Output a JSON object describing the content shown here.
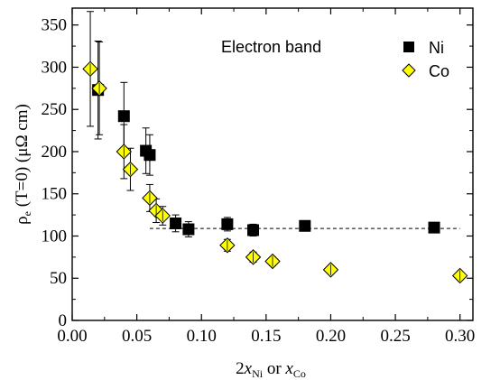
{
  "chart_data": {
    "type": "scatter",
    "annotation": "Electron band",
    "xlabel": {
      "base": "2",
      "var1": "x",
      "sub1": "Ni",
      "mid": " or ",
      "var2": "x",
      "sub2": "Co"
    },
    "ylabel": {
      "rho": "ρ",
      "sub": "e",
      "rest": " (T=0) (μΩ cm)"
    },
    "xlim": [
      0,
      0.31
    ],
    "ylim": [
      0,
      370
    ],
    "xticks": [
      "0.00",
      "0.05",
      "0.10",
      "0.15",
      "0.20",
      "0.25",
      "0.30"
    ],
    "yticks": [
      "0",
      "50",
      "100",
      "150",
      "200",
      "250",
      "300",
      "350"
    ],
    "legend_position": "top-right",
    "series": [
      {
        "name": "Ni",
        "marker": "square",
        "color": "#000000",
        "points": [
          {
            "x": 0.02,
            "y": 273,
            "err": 58
          },
          {
            "x": 0.04,
            "y": 242,
            "err": 40
          },
          {
            "x": 0.057,
            "y": 201,
            "err": 27
          },
          {
            "x": 0.06,
            "y": 196,
            "err": 24
          },
          {
            "x": 0.08,
            "y": 115,
            "err": 10
          },
          {
            "x": 0.09,
            "y": 108,
            "err": 9
          },
          {
            "x": 0.12,
            "y": 114,
            "err": 8
          },
          {
            "x": 0.14,
            "y": 107,
            "err": 7
          },
          {
            "x": 0.18,
            "y": 112,
            "err": 5
          },
          {
            "x": 0.28,
            "y": 110,
            "err": 5
          }
        ]
      },
      {
        "name": "Co",
        "marker": "diamond",
        "color": "#ffff00",
        "points": [
          {
            "x": 0.014,
            "y": 298,
            "err": 68
          },
          {
            "x": 0.021,
            "y": 275,
            "err": 55
          },
          {
            "x": 0.04,
            "y": 200,
            "err": 32
          },
          {
            "x": 0.045,
            "y": 179,
            "err": 25
          },
          {
            "x": 0.06,
            "y": 145,
            "err": 16
          },
          {
            "x": 0.065,
            "y": 130,
            "err": 14
          },
          {
            "x": 0.07,
            "y": 124,
            "err": 11
          },
          {
            "x": 0.12,
            "y": 89,
            "err": 7
          },
          {
            "x": 0.14,
            "y": 75,
            "err": 6
          },
          {
            "x": 0.155,
            "y": 70,
            "err": 5
          },
          {
            "x": 0.2,
            "y": 60,
            "err": 4
          },
          {
            "x": 0.3,
            "y": 53,
            "err": 4
          }
        ]
      }
    ],
    "reference_line": {
      "style": "dashed",
      "x_start": 0.06,
      "x_end": 0.3,
      "y": 109
    }
  }
}
